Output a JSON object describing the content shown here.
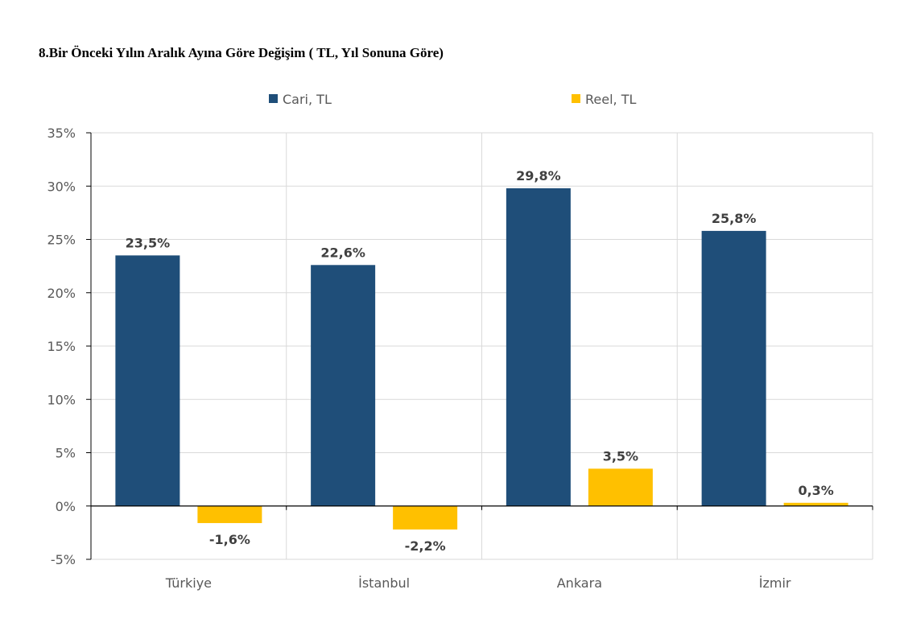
{
  "chart_data": {
    "type": "bar",
    "title": "8.Bir Önceki Yılın Aralık Ayına Göre Değişim ( TL, Yıl Sonuna Göre)",
    "categories": [
      "Türkiye",
      "İstanbul",
      "Ankara",
      "İzmir"
    ],
    "series": [
      {
        "name": "Cari, TL",
        "color": "#1f4e79",
        "values": [
          23.5,
          22.6,
          29.8,
          25.8
        ],
        "labels": [
          "23,5%",
          "22,6%",
          "29,8%",
          "25,8%"
        ]
      },
      {
        "name": "Reel, TL",
        "color": "#ffc000",
        "values": [
          -1.6,
          -2.2,
          3.5,
          0.3
        ],
        "labels": [
          "-1,6%",
          "-2,2%",
          "3,5%",
          "0,3%"
        ]
      }
    ],
    "ylim": [
      -5,
      35
    ],
    "yticks": [
      35,
      30,
      25,
      20,
      15,
      10,
      5,
      0,
      -5
    ],
    "ytick_labels": [
      "35%",
      "30%",
      "25%",
      "20%",
      "15%",
      "10%",
      "5%",
      "0%",
      "-5%"
    ],
    "xlabel": "",
    "ylabel": "",
    "grid": true,
    "legend_position": "top"
  }
}
